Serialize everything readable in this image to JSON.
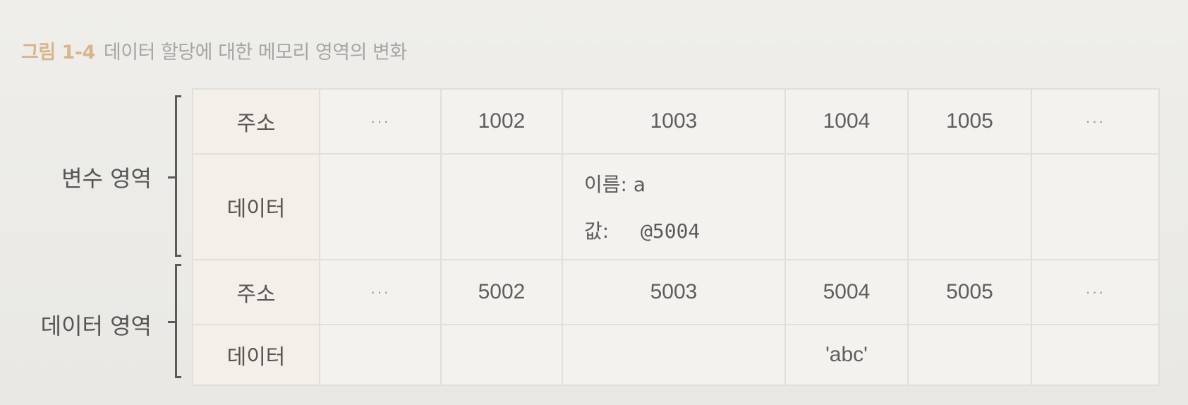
{
  "caption": {
    "label": "그림 1-4",
    "text": "데이터 할당에 대한 메모리 영역의 변화"
  },
  "regions": {
    "variable": "변수 영역",
    "data": "데이터 영역"
  },
  "row_headers": {
    "address": "주소",
    "data": "데이터"
  },
  "variable_region": {
    "addresses": [
      "···",
      "1002",
      "1003",
      "1004",
      "1005",
      "···"
    ],
    "cell_1003": {
      "name_line": "이름: a",
      "value_key": "값:",
      "value": "@5004"
    }
  },
  "data_region": {
    "addresses": [
      "···",
      "5002",
      "5003",
      "5004",
      "5005",
      "···"
    ],
    "cell_5004": "'abc'"
  }
}
